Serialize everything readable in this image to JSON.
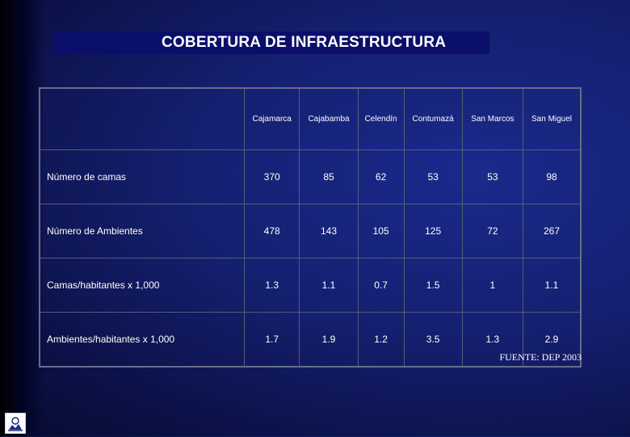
{
  "title": "COBERTURA DE INFRAESTRUCTURA",
  "table": {
    "columns": [
      "Cajamarca",
      "Cajabamba",
      "Celendín",
      "Contumazá",
      "San Marcos",
      "San Miguel"
    ],
    "rows": [
      {
        "label": "Número de camas",
        "values": [
          "370",
          "85",
          "62",
          "53",
          "53",
          "98"
        ]
      },
      {
        "label": "Número de Ambientes",
        "values": [
          "478",
          "143",
          "105",
          "125",
          "72",
          "267"
        ]
      },
      {
        "label": "Camas/habitantes x 1,000",
        "values": [
          "1.3",
          "1.1",
          "0.7",
          "1.5",
          "1",
          "1.1"
        ]
      },
      {
        "label": "Ambientes/habitantes x 1,000",
        "values": [
          "1.7",
          "1.9",
          "1.2",
          "3.5",
          "1.3",
          "2.9"
        ]
      }
    ]
  },
  "source": "FUENTE: DEP 2003",
  "logo": {
    "icon": "institution-logo-icon"
  }
}
